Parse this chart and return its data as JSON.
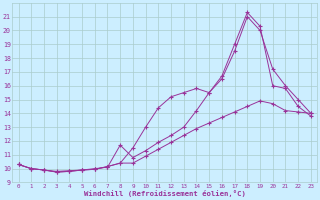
{
  "xlabel": "Windchill (Refroidissement éolien,°C)",
  "bg_color": "#cceeff",
  "grid_color": "#aacccc",
  "line_color": "#993399",
  "xlim": [
    -0.5,
    23.5
  ],
  "ylim": [
    9,
    22
  ],
  "yticks": [
    9,
    10,
    11,
    12,
    13,
    14,
    15,
    16,
    17,
    18,
    19,
    20,
    21
  ],
  "xticks": [
    0,
    1,
    2,
    3,
    4,
    5,
    6,
    7,
    8,
    9,
    10,
    11,
    12,
    13,
    14,
    15,
    16,
    17,
    18,
    19,
    20,
    21,
    22,
    23
  ],
  "line1_x": [
    0,
    1,
    2,
    3,
    4,
    5,
    6,
    7,
    8,
    9,
    10,
    11,
    12,
    13,
    14,
    15,
    16,
    17,
    18,
    19,
    20,
    21,
    22,
    23
  ],
  "line1_y": [
    10.3,
    10.0,
    9.9,
    9.8,
    9.85,
    9.9,
    10.0,
    10.1,
    11.7,
    10.8,
    11.3,
    11.9,
    12.4,
    13.0,
    14.2,
    15.5,
    16.5,
    18.5,
    21.0,
    20.0,
    17.2,
    16.0,
    15.0,
    14.0
  ],
  "line2_x": [
    0,
    1,
    2,
    3,
    4,
    5,
    6,
    7,
    8,
    9,
    10,
    11,
    12,
    13,
    14,
    15,
    16,
    17,
    18,
    19,
    20,
    21,
    22,
    23
  ],
  "line2_y": [
    10.3,
    10.0,
    9.9,
    9.75,
    9.8,
    9.9,
    9.95,
    10.15,
    10.4,
    11.5,
    13.0,
    14.4,
    15.2,
    15.5,
    15.8,
    15.5,
    16.7,
    19.0,
    21.3,
    20.3,
    16.0,
    15.8,
    14.5,
    13.8
  ],
  "line3_x": [
    0,
    1,
    2,
    3,
    4,
    5,
    6,
    7,
    8,
    9,
    10,
    11,
    12,
    13,
    14,
    15,
    16,
    17,
    18,
    19,
    20,
    21,
    22,
    23
  ],
  "line3_y": [
    10.3,
    10.0,
    9.9,
    9.75,
    9.8,
    9.9,
    9.95,
    10.15,
    10.4,
    10.4,
    10.9,
    11.4,
    11.9,
    12.4,
    12.9,
    13.3,
    13.7,
    14.1,
    14.5,
    14.9,
    14.7,
    14.2,
    14.1,
    14.0
  ]
}
